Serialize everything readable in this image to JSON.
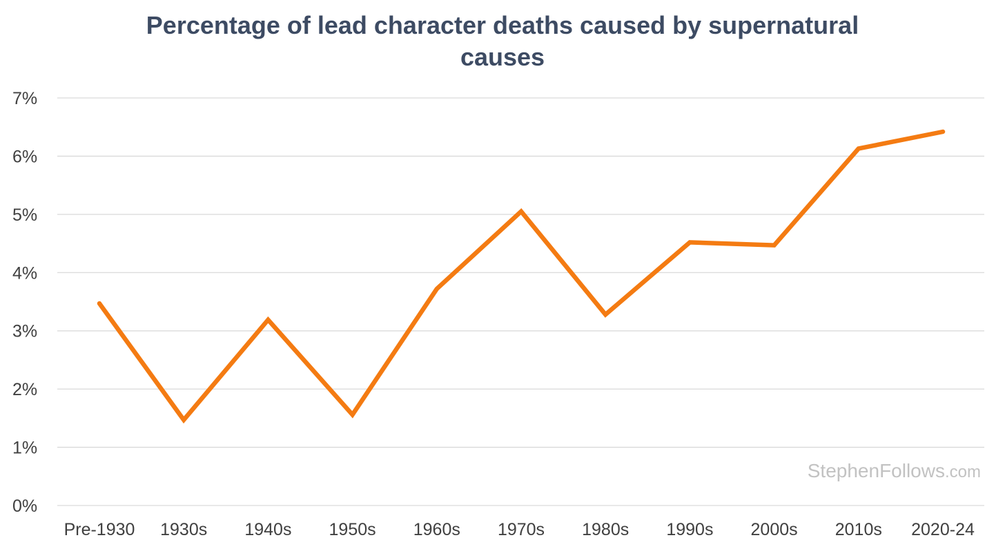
{
  "chart_data": {
    "type": "line",
    "title_lines": [
      "Percentage of lead character deaths caused by supernatural",
      "causes"
    ],
    "categories": [
      "Pre-1930",
      "1930s",
      "1940s",
      "1950s",
      "1960s",
      "1970s",
      "1980s",
      "1990s",
      "2000s",
      "2010s",
      "2020-24"
    ],
    "series": [
      {
        "values": [
          3.47,
          1.47,
          3.19,
          1.56,
          3.72,
          5.05,
          3.28,
          4.52,
          4.47,
          6.13,
          6.42
        ],
        "color": "#f47b12"
      }
    ],
    "ylim": [
      0,
      7
    ],
    "y_ticks": [
      {
        "value": 0,
        "label": "0%"
      },
      {
        "value": 1,
        "label": "1%"
      },
      {
        "value": 2,
        "label": "2%"
      },
      {
        "value": 3,
        "label": "3%"
      },
      {
        "value": 4,
        "label": "4%"
      },
      {
        "value": 5,
        "label": "5%"
      },
      {
        "value": 6,
        "label": "6%"
      },
      {
        "value": 7,
        "label": "7%"
      }
    ],
    "grid": true,
    "grid_color": "#d9d9d9",
    "title_color": "#3d4b63",
    "watermark": {
      "main": "StephenFollows",
      "suffix": ".com"
    }
  }
}
